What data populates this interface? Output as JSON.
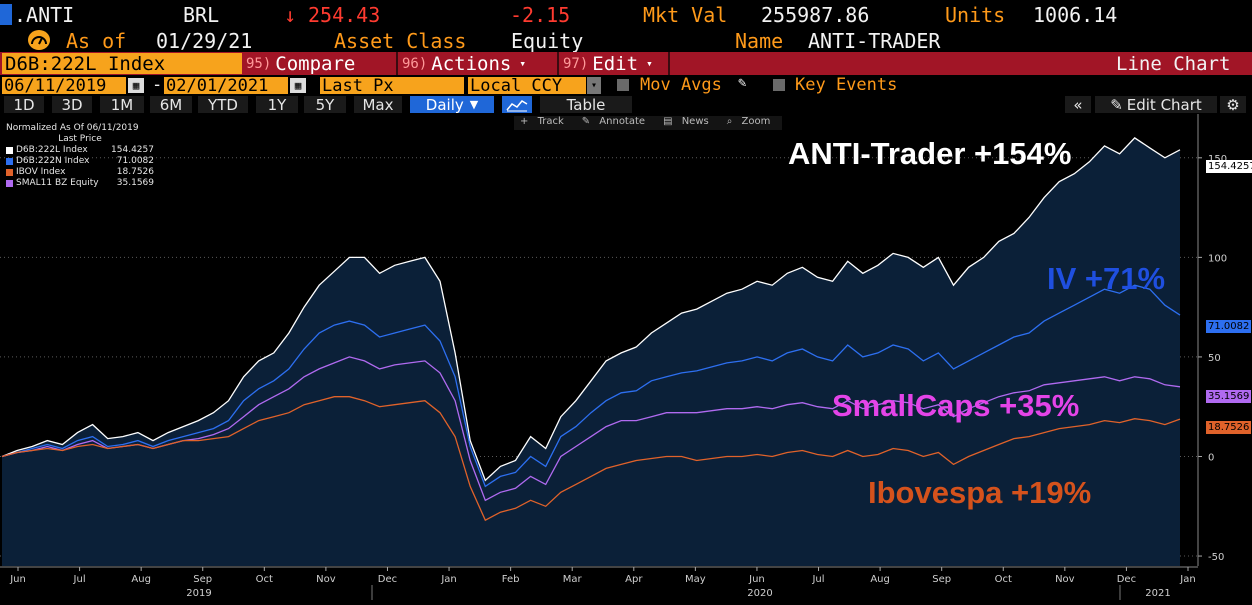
{
  "header": {
    "ticker": ".ANTI",
    "currency": "BRL",
    "price": "254.43",
    "change": "-2.15",
    "mkt_val_label": "Mkt Val",
    "mkt_val": "255987.86",
    "units_label": "Units",
    "units": "1006.14",
    "as_of_label": "As of",
    "as_of": "01/29/21",
    "asset_class_label": "Asset Class",
    "asset_class": "Equity",
    "name_label": "Name",
    "name": "ANTI-TRADER"
  },
  "toolbar": {
    "security": "D6B:222L Index",
    "compare_num": "95)",
    "compare": "Compare",
    "actions_num": "96)",
    "actions": "Actions",
    "edit_num": "97)",
    "edit": "Edit",
    "chart_type": "Line Chart"
  },
  "settings": {
    "start_date": "06/11/2019",
    "end_date": "02/01/2021",
    "dash": "-",
    "field": "Last Px",
    "ccy": "Local CCY",
    "mov_avgs": "Mov Avgs",
    "key_events": "Key Events"
  },
  "periods": {
    "items": [
      "1D",
      "3D",
      "1M",
      "6M",
      "YTD",
      "1Y",
      "5Y",
      "Max"
    ],
    "frequency": "Daily",
    "table": "Table",
    "edit_chart": "Edit Chart"
  },
  "chart_tools": [
    "Track",
    "Annotate",
    "News",
    "Zoom"
  ],
  "legend": {
    "title": "Normalized As Of 06/11/2019",
    "subtitle": "Last Price",
    "items": [
      {
        "name": "D6B:222L Index",
        "value": "154.4257",
        "color": "#ffffff"
      },
      {
        "name": "D6B:222N Index",
        "value": "71.0082",
        "color": "#2d6ff0"
      },
      {
        "name": "IBOV Index",
        "value": "18.7526",
        "color": "#e0622a"
      },
      {
        "name": "SMAL11 BZ Equity",
        "value": "35.1569",
        "color": "#b06af0"
      }
    ]
  },
  "annotations": {
    "anti": "ANTI-Trader +154%",
    "iv": "IV +71%",
    "small": "SmallCaps +35%",
    "ibov": "Ibovespa +19%"
  },
  "chart_data": {
    "type": "line",
    "x_labels": [
      "Jun",
      "Jul",
      "Aug",
      "Sep",
      "Oct",
      "Nov",
      "Dec",
      "Jan",
      "Feb",
      "Mar",
      "Apr",
      "May",
      "Jun",
      "Jul",
      "Aug",
      "Sep",
      "Oct",
      "Nov",
      "Dec",
      "Jan"
    ],
    "year_labels": [
      "2019",
      "2020",
      "2021"
    ],
    "y_ticks": [
      150,
      100,
      50,
      0,
      -50
    ],
    "ylim": [
      -55,
      172
    ],
    "last_values": [
      "154.4257",
      "71.0082",
      "35.1569",
      "18.7526"
    ],
    "series": [
      {
        "name": "D6B:222L Index",
        "color": "#ffffff",
        "fill": true,
        "values": [
          0,
          3,
          5,
          8,
          6,
          12,
          16,
          9,
          10,
          12,
          8,
          12,
          15,
          18,
          22,
          28,
          40,
          48,
          52,
          62,
          75,
          86,
          93,
          100,
          100,
          92,
          96,
          98,
          100,
          88,
          52,
          8,
          -12,
          -5,
          -2,
          10,
          4,
          20,
          28,
          38,
          48,
          52,
          55,
          62,
          67,
          72,
          74,
          78,
          82,
          84,
          88,
          86,
          92,
          95,
          90,
          88,
          98,
          92,
          96,
          102,
          100,
          95,
          100,
          86,
          95,
          100,
          108,
          112,
          120,
          130,
          138,
          142,
          148,
          156,
          152,
          160,
          155,
          150,
          154
        ]
      },
      {
        "name": "D6B:222N Index",
        "color": "#2d6ff0",
        "values": [
          0,
          2,
          4,
          6,
          4,
          8,
          10,
          5,
          6,
          8,
          5,
          8,
          10,
          12,
          14,
          18,
          28,
          34,
          38,
          44,
          54,
          62,
          66,
          68,
          66,
          60,
          62,
          64,
          66,
          58,
          40,
          5,
          -15,
          -10,
          -8,
          0,
          -5,
          10,
          15,
          22,
          28,
          32,
          33,
          38,
          40,
          42,
          43,
          45,
          47,
          48,
          50,
          48,
          52,
          54,
          50,
          48,
          56,
          50,
          52,
          56,
          54,
          48,
          52,
          44,
          48,
          52,
          56,
          60,
          62,
          68,
          72,
          76,
          80,
          84,
          82,
          86,
          84,
          76,
          71
        ]
      },
      {
        "name": "SMAL11 BZ Equity",
        "color": "#b06af0",
        "values": [
          0,
          2,
          3,
          5,
          3,
          6,
          8,
          4,
          5,
          6,
          4,
          6,
          8,
          9,
          11,
          14,
          20,
          26,
          30,
          34,
          40,
          44,
          47,
          50,
          48,
          44,
          46,
          47,
          48,
          42,
          28,
          -2,
          -22,
          -18,
          -16,
          -10,
          -14,
          0,
          5,
          10,
          15,
          18,
          18,
          20,
          22,
          22,
          22,
          23,
          24,
          24,
          25,
          24,
          26,
          27,
          25,
          24,
          28,
          24,
          26,
          28,
          27,
          24,
          26,
          20,
          24,
          27,
          30,
          32,
          33,
          36,
          37,
          38,
          39,
          40,
          38,
          40,
          39,
          36,
          35
        ]
      },
      {
        "name": "IBOV Index",
        "color": "#e0622a",
        "values": [
          0,
          2,
          3,
          4,
          3,
          5,
          6,
          4,
          5,
          6,
          4,
          6,
          8,
          8,
          9,
          10,
          14,
          18,
          20,
          22,
          26,
          28,
          30,
          30,
          28,
          25,
          26,
          27,
          28,
          22,
          10,
          -15,
          -32,
          -28,
          -26,
          -22,
          -25,
          -18,
          -14,
          -10,
          -6,
          -4,
          -2,
          -1,
          0,
          0,
          -2,
          -1,
          0,
          0,
          1,
          0,
          2,
          3,
          1,
          0,
          3,
          0,
          1,
          4,
          3,
          0,
          2,
          -4,
          0,
          3,
          6,
          9,
          10,
          12,
          14,
          15,
          16,
          18,
          17,
          19,
          18,
          16,
          18.75
        ]
      }
    ]
  }
}
